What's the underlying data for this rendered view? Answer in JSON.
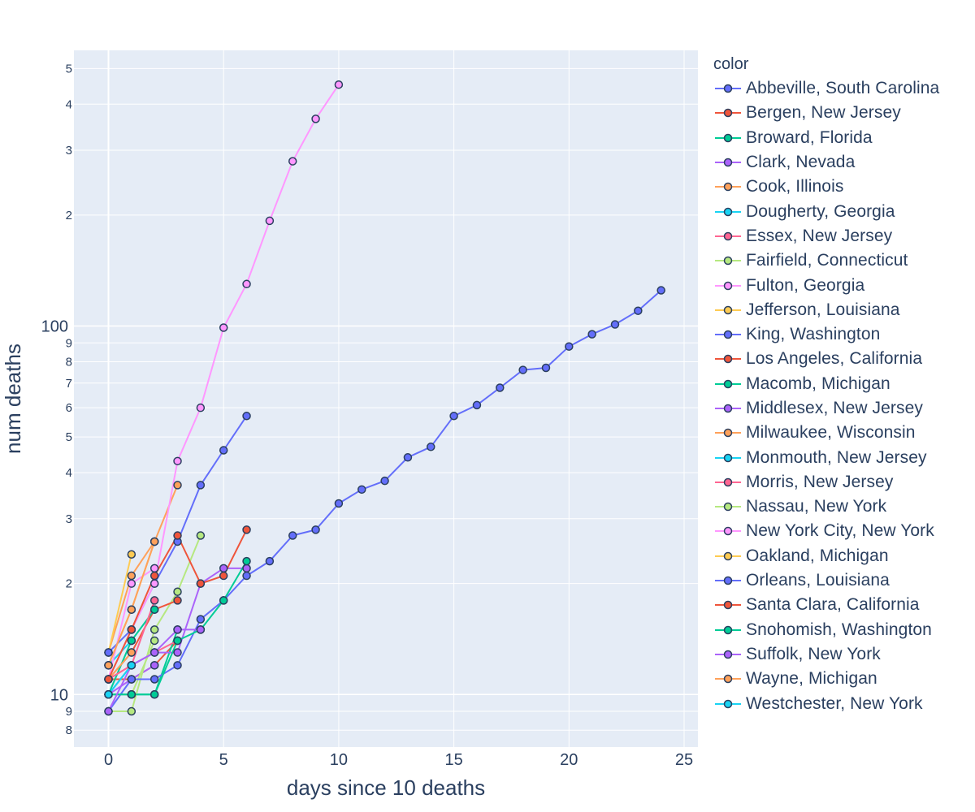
{
  "chart_data": {
    "type": "line",
    "xlabel": "days since 10 deaths",
    "ylabel": "num deaths",
    "legend_title": "color",
    "legend_position": "right",
    "y_scale": "log",
    "xlim": [
      -1.5,
      25.6
    ],
    "ylim": [
      7.2,
      560
    ],
    "grid": true,
    "x_ticks": [
      "0",
      "5",
      "10",
      "15",
      "20",
      "25"
    ],
    "x_tick_values": [
      0,
      5,
      10,
      15,
      20,
      25
    ],
    "y_major_ticks": [
      {
        "value": 10,
        "label": "10"
      },
      {
        "value": 100,
        "label": "100"
      }
    ],
    "y_minor_ticks": [
      {
        "value": 8,
        "label": "8"
      },
      {
        "value": 9,
        "label": "9"
      },
      {
        "value": 20,
        "label": "2"
      },
      {
        "value": 30,
        "label": "3"
      },
      {
        "value": 40,
        "label": "4"
      },
      {
        "value": 50,
        "label": "5"
      },
      {
        "value": 60,
        "label": "6"
      },
      {
        "value": 70,
        "label": "7"
      },
      {
        "value": 80,
        "label": "8"
      },
      {
        "value": 90,
        "label": "9"
      },
      {
        "value": 200,
        "label": "2"
      },
      {
        "value": 300,
        "label": "3"
      },
      {
        "value": 400,
        "label": "4"
      },
      {
        "value": 500,
        "label": "5"
      }
    ],
    "series": [
      {
        "name": "Abbeville, South Carolina",
        "color": "#636efa",
        "x": [
          0
        ],
        "y": [
          12
        ]
      },
      {
        "name": "Bergen, New Jersey",
        "color": "#EF553B",
        "x": [
          0,
          1,
          2,
          3
        ],
        "y": [
          11,
          11,
          12,
          14
        ]
      },
      {
        "name": "Broward, Florida",
        "color": "#00cc96",
        "x": [
          0,
          1,
          2,
          3
        ],
        "y": [
          10,
          10,
          10,
          15
        ]
      },
      {
        "name": "Clark, Nevada",
        "color": "#ab63fa",
        "x": [
          0,
          1,
          2
        ],
        "y": [
          10,
          11,
          12
        ]
      },
      {
        "name": "Cook, Illinois",
        "color": "#FFA15A",
        "x": [
          0,
          1,
          2,
          3
        ],
        "y": [
          13,
          21,
          26,
          37
        ]
      },
      {
        "name": "Dougherty, Georgia",
        "color": "#19d3f3",
        "x": [
          0,
          1
        ],
        "y": [
          12,
          14
        ]
      },
      {
        "name": "Essex, New Jersey",
        "color": "#FF6692",
        "x": [
          0,
          1,
          2,
          3
        ],
        "y": [
          11,
          12,
          13,
          14
        ]
      },
      {
        "name": "Fairfield, Connecticut",
        "color": "#B6E880",
        "x": [
          0,
          1,
          2,
          3,
          4
        ],
        "y": [
          9,
          9,
          15,
          19,
          27
        ]
      },
      {
        "name": "Fulton, Georgia",
        "color": "#FF97FF",
        "x": [
          0,
          1,
          2
        ],
        "y": [
          11,
          20,
          22
        ]
      },
      {
        "name": "Jefferson, Louisiana",
        "color": "#FECB52",
        "x": [
          0,
          1
        ],
        "y": [
          13,
          24
        ]
      },
      {
        "name": "King, Washington",
        "color": "#636efa",
        "x": [
          0,
          1,
          2,
          3,
          4,
          5,
          6
        ],
        "y": [
          13,
          15,
          20,
          26,
          37,
          46,
          57
        ]
      },
      {
        "name": "Los Angeles, California",
        "color": "#EF553B",
        "x": [
          0,
          1,
          2,
          3
        ],
        "y": [
          11,
          13,
          17,
          18
        ]
      },
      {
        "name": "Macomb, Michigan",
        "color": "#00cc96",
        "x": [
          0,
          1,
          2
        ],
        "y": [
          10,
          14,
          17
        ]
      },
      {
        "name": "Middlesex, New Jersey",
        "color": "#ab63fa",
        "x": [
          0,
          1,
          2,
          3,
          4,
          5,
          6
        ],
        "y": [
          10,
          12,
          13,
          13,
          20,
          22,
          22
        ]
      },
      {
        "name": "Milwaukee, Wisconsin",
        "color": "#FFA15A",
        "x": [
          0,
          1
        ],
        "y": [
          11,
          13
        ]
      },
      {
        "name": "Monmouth, New Jersey",
        "color": "#19d3f3",
        "x": [
          0,
          1
        ],
        "y": [
          10,
          12
        ]
      },
      {
        "name": "Morris, New Jersey",
        "color": "#FF6692",
        "x": [
          0,
          1,
          2
        ],
        "y": [
          11,
          12,
          18
        ]
      },
      {
        "name": "Nassau, New York",
        "color": "#B6E880",
        "x": [
          0,
          1,
          2
        ],
        "y": [
          10,
          10,
          14
        ]
      },
      {
        "name": "New York City, New York",
        "color": "#FF97FF",
        "x": [
          0,
          1,
          2,
          3,
          4,
          5,
          6,
          7,
          8,
          9,
          10
        ],
        "y": [
          11,
          15,
          20,
          43,
          60,
          99,
          130,
          193,
          280,
          365,
          452
        ]
      },
      {
        "name": "Oakland, Michigan",
        "color": "#FECB52",
        "x": [
          0,
          1,
          2
        ],
        "y": [
          12,
          17,
          26
        ]
      },
      {
        "name": "Orleans, Louisiana",
        "color": "#636efa",
        "x": [
          0,
          1,
          2,
          3,
          4,
          5,
          6,
          7,
          8,
          9,
          10,
          11,
          12,
          13,
          14,
          15,
          16,
          17,
          18,
          19,
          20,
          21,
          22,
          23,
          24
        ],
        "y": [
          9,
          11,
          11,
          12,
          16,
          18,
          21,
          23,
          27,
          28,
          33,
          36,
          38,
          44,
          47,
          57,
          61,
          68,
          76,
          77,
          88,
          95,
          101,
          110,
          125
        ]
      },
      {
        "name": "Santa Clara, California",
        "color": "#EF553B",
        "x": [
          0,
          1,
          2,
          3,
          4,
          5,
          6
        ],
        "y": [
          11,
          15,
          21,
          27,
          20,
          21,
          28
        ]
      },
      {
        "name": "Snohomish, Washington",
        "color": "#00cc96",
        "x": [
          0,
          1,
          2,
          3,
          4,
          5,
          6
        ],
        "y": [
          10,
          10,
          10,
          14,
          15,
          18,
          23
        ]
      },
      {
        "name": "Suffolk, New York",
        "color": "#ab63fa",
        "x": [
          0,
          1,
          2,
          3,
          4
        ],
        "y": [
          9,
          12,
          13,
          15,
          15
        ]
      },
      {
        "name": "Wayne, Michigan",
        "color": "#FFA15A",
        "x": [
          0,
          1,
          2
        ],
        "y": [
          12,
          17,
          26
        ]
      },
      {
        "name": "Westchester, New York",
        "color": "#19d3f3",
        "x": [
          0,
          1
        ],
        "y": [
          10,
          12
        ]
      }
    ]
  }
}
